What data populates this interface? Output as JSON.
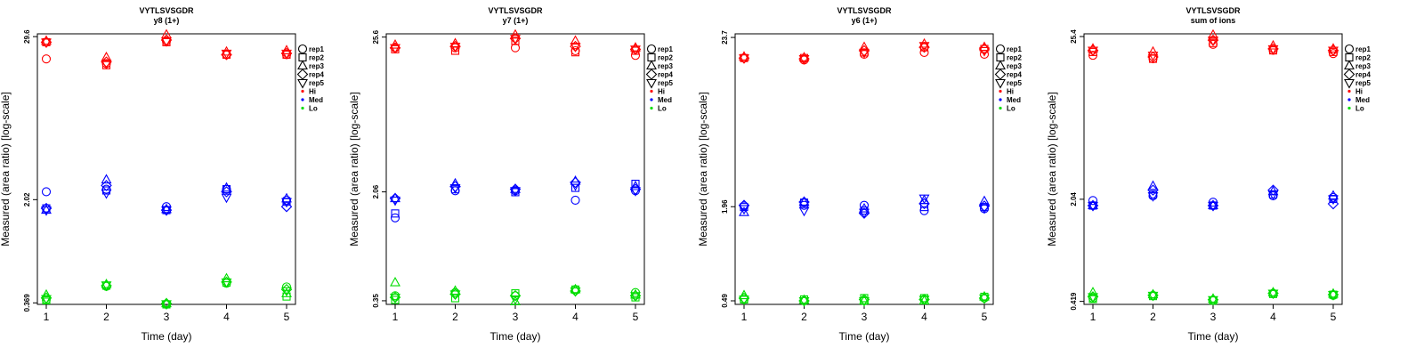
{
  "colors": {
    "Hi": "#ff0000",
    "Med": "#0000ff",
    "Lo": "#00dd00"
  },
  "legend": {
    "reps": [
      {
        "label": "rep1",
        "shape": "circle"
      },
      {
        "label": "rep2",
        "shape": "square"
      },
      {
        "label": "rep3",
        "shape": "triangle-up"
      },
      {
        "label": "rep4",
        "shape": "diamond"
      },
      {
        "label": "rep5",
        "shape": "triangle-down"
      }
    ],
    "groups": [
      {
        "label": "Hi",
        "color": "#ff0000"
      },
      {
        "label": "Med",
        "color": "#0000ff"
      },
      {
        "label": "Lo",
        "color": "#00dd00"
      }
    ]
  },
  "chart_data": [
    {
      "type": "scatter",
      "title": "VYTLSVSGDR",
      "subtitle": "y8 (1+)",
      "xlabel": "Time (day)",
      "ylabel": "Measured (area ratio) [log-scale]",
      "log_y": true,
      "ylim": [
        0.36,
        31.0
      ],
      "yticks": [
        {
          "value": 0.369,
          "label": "0.369"
        },
        {
          "value": 2.02,
          "label": "2.02"
        },
        {
          "value": 29.6,
          "label": "29.6"
        }
      ],
      "x": [
        1,
        2,
        3,
        4,
        5
      ],
      "series": [
        {
          "group": "Hi",
          "rep": "rep1",
          "y": [
            20.5,
            19.0,
            27.5,
            22.0,
            22.0
          ]
        },
        {
          "group": "Hi",
          "rep": "rep2",
          "y": [
            27.0,
            18.5,
            27.0,
            22.0,
            22.0
          ]
        },
        {
          "group": "Hi",
          "rep": "rep3",
          "y": [
            27.5,
            21.0,
            30.5,
            23.0,
            23.5
          ]
        },
        {
          "group": "Hi",
          "rep": "rep4",
          "y": [
            27.0,
            19.5,
            28.0,
            22.0,
            22.5
          ]
        },
        {
          "group": "Hi",
          "rep": "rep5",
          "y": [
            27.0,
            19.0,
            27.5,
            22.5,
            22.5
          ]
        },
        {
          "group": "Med",
          "rep": "rep1",
          "y": [
            2.3,
            2.4,
            1.8,
            2.4,
            2.0
          ]
        },
        {
          "group": "Med",
          "rep": "rep2",
          "y": [
            1.75,
            2.35,
            1.7,
            2.4,
            1.95
          ]
        },
        {
          "group": "Med",
          "rep": "rep3",
          "y": [
            1.7,
            2.8,
            1.72,
            2.45,
            2.05
          ]
        },
        {
          "group": "Med",
          "rep": "rep4",
          "y": [
            1.75,
            2.55,
            1.7,
            2.3,
            1.8
          ]
        },
        {
          "group": "Med",
          "rep": "rep5",
          "y": [
            1.7,
            2.25,
            1.7,
            2.1,
            1.95
          ]
        },
        {
          "group": "Lo",
          "rep": "rep1",
          "y": [
            0.39,
            0.485,
            0.36,
            0.51,
            0.48
          ]
        },
        {
          "group": "Lo",
          "rep": "rep2",
          "y": [
            0.385,
            0.49,
            0.36,
            0.515,
            0.41
          ]
        },
        {
          "group": "Lo",
          "rep": "rep3",
          "y": [
            0.42,
            0.5,
            0.365,
            0.55,
            0.43
          ]
        },
        {
          "group": "Lo",
          "rep": "rep4",
          "y": [
            0.4,
            0.49,
            0.365,
            0.52,
            0.46
          ]
        },
        {
          "group": "Lo",
          "rep": "rep5",
          "y": [
            0.395,
            0.495,
            0.363,
            0.52,
            0.45
          ]
        }
      ]
    },
    {
      "type": "scatter",
      "title": "VYTLSVSGDR",
      "subtitle": "y7 (1+)",
      "xlabel": "Time (day)",
      "ylabel": "Measured (area ratio) [log-scale]",
      "log_y": true,
      "ylim": [
        0.33,
        27.0
      ],
      "yticks": [
        {
          "value": 0.35,
          "label": "0.35"
        },
        {
          "value": 2.06,
          "label": "2.06"
        },
        {
          "value": 25.6,
          "label": "25.6"
        }
      ],
      "x": [
        1,
        2,
        3,
        4,
        5
      ],
      "series": [
        {
          "group": "Hi",
          "rep": "rep1",
          "y": [
            21.5,
            21.5,
            21.5,
            20.5,
            19.0
          ]
        },
        {
          "group": "Hi",
          "rep": "rep2",
          "y": [
            21.0,
            20.5,
            24.0,
            20.0,
            20.5
          ]
        },
        {
          "group": "Hi",
          "rep": "rep3",
          "y": [
            22.5,
            23.0,
            26.5,
            24.0,
            21.5
          ]
        },
        {
          "group": "Hi",
          "rep": "rep4",
          "y": [
            21.5,
            22.0,
            25.0,
            22.0,
            21.0
          ]
        },
        {
          "group": "Hi",
          "rep": "rep5",
          "y": [
            21.5,
            22.0,
            25.0,
            22.0,
            21.0
          ]
        },
        {
          "group": "Med",
          "rep": "rep1",
          "y": [
            1.35,
            2.1,
            2.1,
            1.8,
            2.1
          ]
        },
        {
          "group": "Med",
          "rep": "rep2",
          "y": [
            1.45,
            2.15,
            2.05,
            2.2,
            2.35
          ]
        },
        {
          "group": "Med",
          "rep": "rep3",
          "y": [
            1.85,
            2.35,
            2.15,
            2.45,
            2.25
          ]
        },
        {
          "group": "Med",
          "rep": "rep4",
          "y": [
            1.85,
            2.25,
            2.15,
            2.4,
            2.15
          ]
        },
        {
          "group": "Med",
          "rep": "rep5",
          "y": [
            1.8,
            2.2,
            2.1,
            2.3,
            2.1
          ]
        },
        {
          "group": "Lo",
          "rep": "rep1",
          "y": [
            0.38,
            0.4,
            0.38,
            0.42,
            0.4
          ]
        },
        {
          "group": "Lo",
          "rep": "rep2",
          "y": [
            0.355,
            0.365,
            0.395,
            0.42,
            0.37
          ]
        },
        {
          "group": "Lo",
          "rep": "rep3",
          "y": [
            0.47,
            0.41,
            0.345,
            0.42,
            0.385
          ]
        },
        {
          "group": "Lo",
          "rep": "rep4",
          "y": [
            0.37,
            0.39,
            0.38,
            0.41,
            0.38
          ]
        },
        {
          "group": "Lo",
          "rep": "rep5",
          "y": [
            0.37,
            0.39,
            0.36,
            0.41,
            0.38
          ]
        }
      ]
    },
    {
      "type": "scatter",
      "title": "VYTLSVSGDR",
      "subtitle": "y6 (1+)",
      "xlabel": "Time (day)",
      "ylabel": "Measured (area ratio) [log-scale]",
      "log_y": true,
      "ylim": [
        0.465,
        25.0
      ],
      "yticks": [
        {
          "value": 0.49,
          "label": "0.49"
        },
        {
          "value": 1.96,
          "label": "1.96"
        },
        {
          "value": 23.7,
          "label": "23.7"
        }
      ],
      "x": [
        1,
        2,
        3,
        4,
        5
      ],
      "series": [
        {
          "group": "Hi",
          "rep": "rep1",
          "y": [
            17.5,
            17.0,
            18.5,
            19.0,
            18.5
          ]
        },
        {
          "group": "Hi",
          "rep": "rep2",
          "y": [
            17.5,
            17.5,
            19.0,
            20.5,
            20.0
          ]
        },
        {
          "group": "Hi",
          "rep": "rep3",
          "y": [
            17.8,
            17.6,
            20.5,
            21.5,
            20.5
          ]
        },
        {
          "group": "Hi",
          "rep": "rep4",
          "y": [
            17.5,
            17.3,
            19.5,
            20.5,
            20.0
          ]
        },
        {
          "group": "Hi",
          "rep": "rep5",
          "y": [
            17.5,
            17.3,
            19.0,
            21.0,
            19.5
          ]
        },
        {
          "group": "Med",
          "rep": "rep1",
          "y": [
            1.98,
            2.0,
            2.0,
            1.85,
            1.9
          ]
        },
        {
          "group": "Med",
          "rep": "rep2",
          "y": [
            1.95,
            2.08,
            1.85,
            1.95,
            1.95
          ]
        },
        {
          "group": "Med",
          "rep": "rep3",
          "y": [
            1.8,
            2.1,
            1.9,
            2.15,
            2.12
          ]
        },
        {
          "group": "Med",
          "rep": "rep4",
          "y": [
            2.0,
            2.1,
            1.78,
            2.05,
            1.98
          ]
        },
        {
          "group": "Med",
          "rep": "rep5",
          "y": [
            1.9,
            1.85,
            1.8,
            2.22,
            1.92
          ]
        },
        {
          "group": "Lo",
          "rep": "rep1",
          "y": [
            0.5,
            0.49,
            0.49,
            0.5,
            0.51
          ]
        },
        {
          "group": "Lo",
          "rep": "rep2",
          "y": [
            0.5,
            0.5,
            0.51,
            0.51,
            0.52
          ]
        },
        {
          "group": "Lo",
          "rep": "rep3",
          "y": [
            0.53,
            0.495,
            0.49,
            0.49,
            0.52
          ]
        },
        {
          "group": "Lo",
          "rep": "rep4",
          "y": [
            0.51,
            0.49,
            0.5,
            0.5,
            0.51
          ]
        },
        {
          "group": "Lo",
          "rep": "rep5",
          "y": [
            0.5,
            0.49,
            0.49,
            0.5,
            0.51
          ]
        }
      ]
    },
    {
      "type": "scatter",
      "title": "VYTLSVSGDR",
      "subtitle": "sum of ions",
      "xlabel": "Time (day)",
      "ylabel": "Measured (area ratio) [log-scale]",
      "log_y": true,
      "ylim": [
        0.4,
        26.5
      ],
      "yticks": [
        {
          "value": 0.419,
          "label": "0.419"
        },
        {
          "value": 2.04,
          "label": "2.04"
        },
        {
          "value": 25.4,
          "label": "25.4"
        }
      ],
      "x": [
        1,
        2,
        3,
        4,
        5
      ],
      "series": [
        {
          "group": "Hi",
          "rep": "rep1",
          "y": [
            19.0,
            18.0,
            22.5,
            20.5,
            19.5
          ]
        },
        {
          "group": "Hi",
          "rep": "rep2",
          "y": [
            20.0,
            18.0,
            23.0,
            20.5,
            20.0
          ]
        },
        {
          "group": "Hi",
          "rep": "rep3",
          "y": [
            21.0,
            20.0,
            26.0,
            22.0,
            21.0
          ]
        },
        {
          "group": "Hi",
          "rep": "rep4",
          "y": [
            20.5,
            18.5,
            24.0,
            21.0,
            20.5
          ]
        },
        {
          "group": "Hi",
          "rep": "rep5",
          "y": [
            20.5,
            19.0,
            24.0,
            21.0,
            20.5
          ]
        },
        {
          "group": "Med",
          "rep": "rep1",
          "y": [
            2.0,
            2.15,
            1.95,
            2.15,
            2.1
          ]
        },
        {
          "group": "Med",
          "rep": "rep2",
          "y": [
            1.85,
            2.2,
            1.85,
            2.2,
            2.05
          ]
        },
        {
          "group": "Med",
          "rep": "rep3",
          "y": [
            1.85,
            2.5,
            1.85,
            2.3,
            2.15
          ]
        },
        {
          "group": "Med",
          "rep": "rep4",
          "y": [
            1.85,
            2.35,
            1.85,
            2.35,
            1.9
          ]
        },
        {
          "group": "Med",
          "rep": "rep5",
          "y": [
            1.85,
            2.15,
            1.85,
            2.2,
            2.05
          ]
        },
        {
          "group": "Lo",
          "rep": "rep1",
          "y": [
            0.44,
            0.46,
            0.425,
            0.475,
            0.46
          ]
        },
        {
          "group": "Lo",
          "rep": "rep2",
          "y": [
            0.435,
            0.455,
            0.425,
            0.47,
            0.465
          ]
        },
        {
          "group": "Lo",
          "rep": "rep3",
          "y": [
            0.48,
            0.465,
            0.435,
            0.48,
            0.47
          ]
        },
        {
          "group": "Lo",
          "rep": "rep4",
          "y": [
            0.45,
            0.46,
            0.43,
            0.475,
            0.465
          ]
        },
        {
          "group": "Lo",
          "rep": "rep5",
          "y": [
            0.45,
            0.46,
            0.43,
            0.475,
            0.465
          ]
        }
      ]
    }
  ]
}
